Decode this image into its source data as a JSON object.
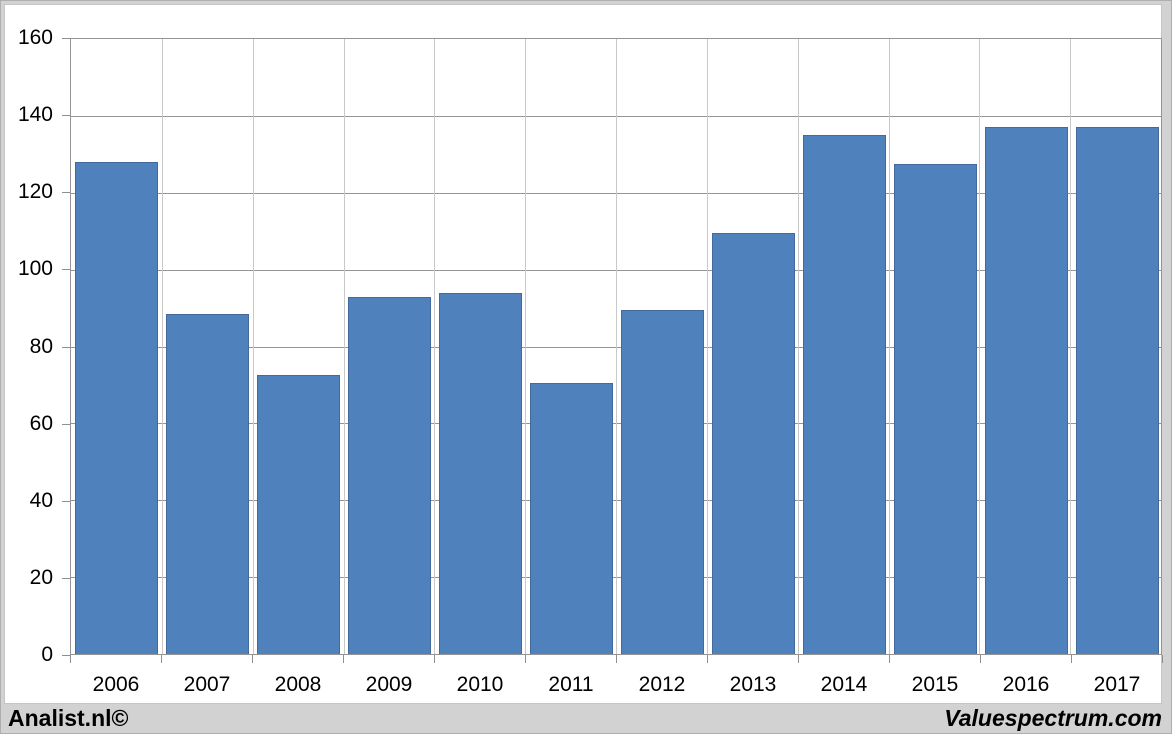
{
  "footer": {
    "left": "Analist.nl©",
    "right": "Valuespectrum.com"
  },
  "chart_data": {
    "type": "bar",
    "title": "",
    "xlabel": "",
    "ylabel": "",
    "categories": [
      "2006",
      "2007",
      "2008",
      "2009",
      "2010",
      "2011",
      "2012",
      "2013",
      "2014",
      "2015",
      "2016",
      "2017"
    ],
    "values": [
      128,
      88.5,
      72.5,
      93,
      94,
      70.5,
      89.5,
      109.5,
      135,
      127.5,
      137,
      137
    ],
    "ylim": [
      0,
      160
    ],
    "ytick_step": 20,
    "y_tick_labels": [
      "0",
      "20",
      "40",
      "60",
      "80",
      "100",
      "120",
      "140",
      "160"
    ],
    "grid": true,
    "legend": null,
    "colors": {
      "bar_fill": "#4f81bd",
      "bar_border": "#44699d",
      "hgrid": "#949494",
      "vgrid": "#c9c9c9",
      "plot_border": "#949494",
      "panel_bg": "#ffffff",
      "panel_border": "#c5c5c5",
      "page_bg": "#d2d2d2",
      "text": "#000000"
    }
  }
}
